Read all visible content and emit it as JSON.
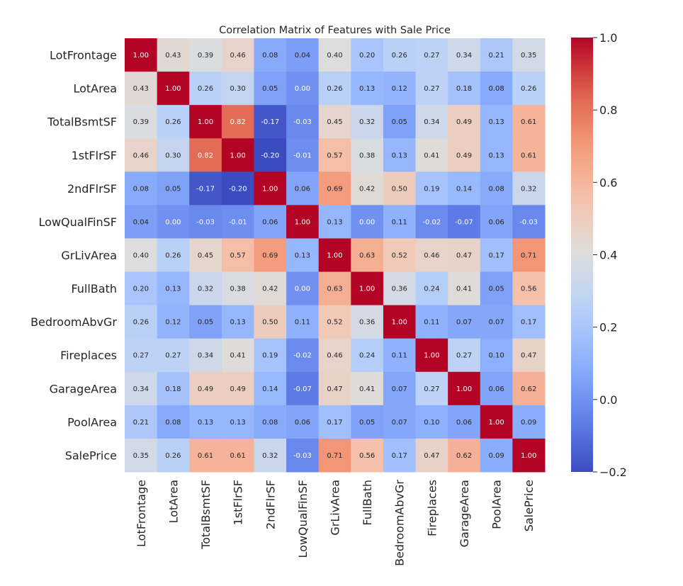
{
  "chart_data": {
    "type": "heatmap",
    "title": "Correlation Matrix of Features with Sale Price",
    "xlabel": "",
    "ylabel": "",
    "colormap": "coolwarm",
    "vmin": -0.2,
    "vmax": 1.0,
    "annotate": true,
    "value_format": "0.00",
    "labels": [
      "LotFrontage",
      "LotArea",
      "TotalBsmtSF",
      "1stFlrSF",
      "2ndFlrSF",
      "LowQualFinSF",
      "GrLivArea",
      "FullBath",
      "BedroomAbvGr",
      "Fireplaces",
      "GarageArea",
      "PoolArea",
      "SalePrice"
    ],
    "matrix": [
      [
        1.0,
        0.43,
        0.39,
        0.46,
        0.08,
        0.04,
        0.4,
        0.2,
        0.26,
        0.27,
        0.34,
        0.21,
        0.35
      ],
      [
        0.43,
        1.0,
        0.26,
        0.3,
        0.05,
        0.0,
        0.26,
        0.13,
        0.12,
        0.27,
        0.18,
        0.08,
        0.26
      ],
      [
        0.39,
        0.26,
        1.0,
        0.82,
        -0.17,
        -0.03,
        0.45,
        0.32,
        0.05,
        0.34,
        0.49,
        0.13,
        0.61
      ],
      [
        0.46,
        0.3,
        0.82,
        1.0,
        -0.2,
        -0.01,
        0.57,
        0.38,
        0.13,
        0.41,
        0.49,
        0.13,
        0.61
      ],
      [
        0.08,
        0.05,
        -0.17,
        -0.2,
        1.0,
        0.06,
        0.69,
        0.42,
        0.5,
        0.19,
        0.14,
        0.08,
        0.32
      ],
      [
        0.04,
        0.0,
        -0.03,
        -0.01,
        0.06,
        1.0,
        0.13,
        -0.0,
        0.11,
        -0.02,
        -0.07,
        0.06,
        -0.03
      ],
      [
        0.4,
        0.26,
        0.45,
        0.57,
        0.69,
        0.13,
        1.0,
        0.63,
        0.52,
        0.46,
        0.47,
        0.17,
        0.71
      ],
      [
        0.2,
        0.13,
        0.32,
        0.38,
        0.42,
        -0.0,
        0.63,
        1.0,
        0.36,
        0.24,
        0.41,
        0.05,
        0.56
      ],
      [
        0.26,
        0.12,
        0.05,
        0.13,
        0.5,
        0.11,
        0.52,
        0.36,
        1.0,
        0.11,
        0.07,
        0.07,
        0.17
      ],
      [
        0.27,
        0.27,
        0.34,
        0.41,
        0.19,
        -0.02,
        0.46,
        0.24,
        0.11,
        1.0,
        0.27,
        0.1,
        0.47
      ],
      [
        0.34,
        0.18,
        0.49,
        0.49,
        0.14,
        -0.07,
        0.47,
        0.41,
        0.07,
        0.27,
        1.0,
        0.06,
        0.62
      ],
      [
        0.21,
        0.08,
        0.13,
        0.13,
        0.08,
        0.06,
        0.17,
        0.05,
        0.07,
        0.1,
        0.06,
        1.0,
        0.09
      ],
      [
        0.35,
        0.26,
        0.61,
        0.61,
        0.32,
        -0.03,
        0.71,
        0.56,
        0.17,
        0.47,
        0.62,
        0.09,
        1.0
      ]
    ],
    "colorbar": {
      "ticks": [
        1.0,
        0.8,
        0.6,
        0.4,
        0.2,
        0.0,
        -0.2
      ],
      "tick_labels": [
        "1.0",
        "0.8",
        "0.6",
        "0.4",
        "0.2",
        "0.0",
        "−0.2"
      ]
    },
    "legend": "colorbar-right",
    "grid": false
  }
}
